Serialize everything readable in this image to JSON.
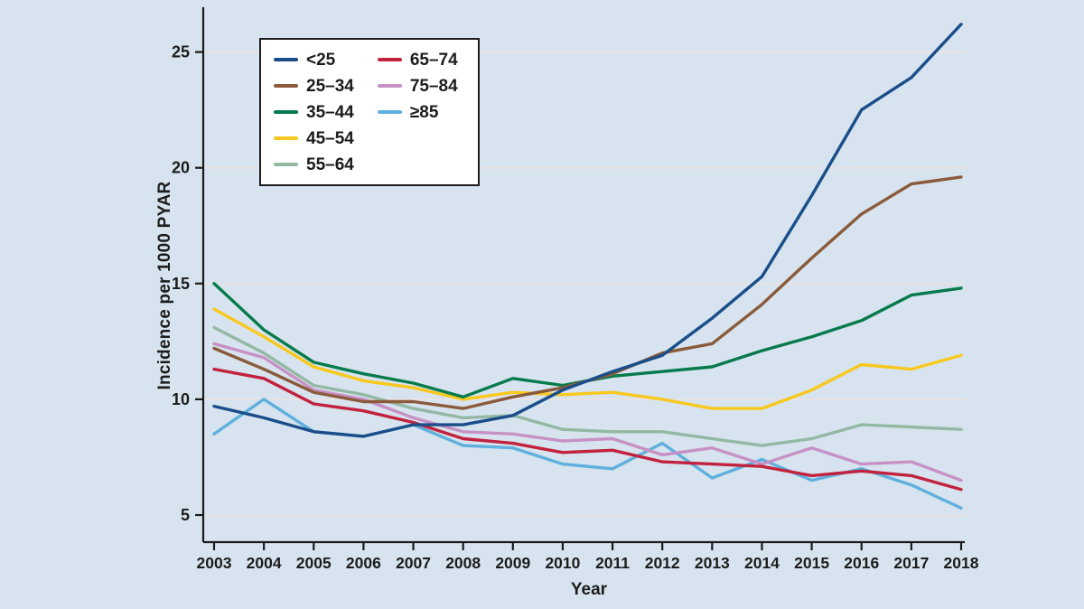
{
  "chart_data": {
    "type": "line",
    "title": "",
    "xlabel": "Year",
    "ylabel": "Incidence per 1000 PYAR",
    "x": [
      2003,
      2004,
      2005,
      2006,
      2007,
      2008,
      2009,
      2010,
      2011,
      2012,
      2013,
      2014,
      2015,
      2016,
      2017,
      2018
    ],
    "y_ticks": [
      5,
      10,
      15,
      20,
      25
    ],
    "ylim": [
      3.8,
      26.8
    ],
    "grid": true,
    "legend_position": "top-left",
    "background_color": "#d7e4ef",
    "axis_color": "#1a1a1a",
    "gridline_color": "#ece2e2",
    "series": [
      {
        "name": "<25",
        "color": "#1a4e8a",
        "values": [
          9.7,
          9.2,
          8.6,
          8.4,
          8.9,
          8.9,
          9.3,
          10.4,
          11.2,
          11.9,
          13.5,
          15.3,
          18.8,
          22.5,
          23.9,
          26.2
        ]
      },
      {
        "name": "25–34",
        "color": "#8a5a3b",
        "values": [
          12.2,
          11.3,
          10.3,
          9.9,
          9.9,
          9.6,
          10.1,
          10.5,
          11.1,
          12.0,
          12.4,
          14.1,
          16.1,
          18.0,
          19.3,
          19.6
        ]
      },
      {
        "name": "35–44",
        "color": "#077a4d",
        "values": [
          15.0,
          13.0,
          11.6,
          11.1,
          10.7,
          10.1,
          10.9,
          10.6,
          11.0,
          11.2,
          11.4,
          12.1,
          12.7,
          13.4,
          14.5,
          14.8
        ]
      },
      {
        "name": "45–54",
        "color": "#f8c81e",
        "values": [
          13.9,
          12.7,
          11.4,
          10.8,
          10.5,
          10.0,
          10.3,
          10.2,
          10.3,
          10.0,
          9.6,
          9.6,
          10.4,
          11.5,
          11.3,
          11.9
        ]
      },
      {
        "name": "55–64",
        "color": "#93b8a3",
        "values": [
          13.1,
          12.0,
          10.6,
          10.2,
          9.6,
          9.2,
          9.3,
          8.7,
          8.6,
          8.6,
          8.3,
          8.0,
          8.3,
          8.9,
          8.8,
          8.7
        ]
      },
      {
        "name": "65–74",
        "color": "#c2223e",
        "values": [
          11.3,
          10.9,
          9.8,
          9.5,
          9.0,
          8.3,
          8.1,
          7.7,
          7.8,
          7.3,
          7.2,
          7.1,
          6.7,
          6.9,
          6.7,
          6.1
        ]
      },
      {
        "name": "75–84",
        "color": "#c791c5",
        "values": [
          12.4,
          11.8,
          10.4,
          10.0,
          9.2,
          8.6,
          8.5,
          8.2,
          8.3,
          7.6,
          7.9,
          7.2,
          7.9,
          7.2,
          7.3,
          6.5
        ]
      },
      {
        "name": "≥85",
        "color": "#5fb0dc",
        "values": [
          8.5,
          10.0,
          8.6,
          8.4,
          8.9,
          8.0,
          7.9,
          7.2,
          7.0,
          8.1,
          6.6,
          7.4,
          6.5,
          7.0,
          6.3,
          5.3
        ]
      }
    ]
  }
}
